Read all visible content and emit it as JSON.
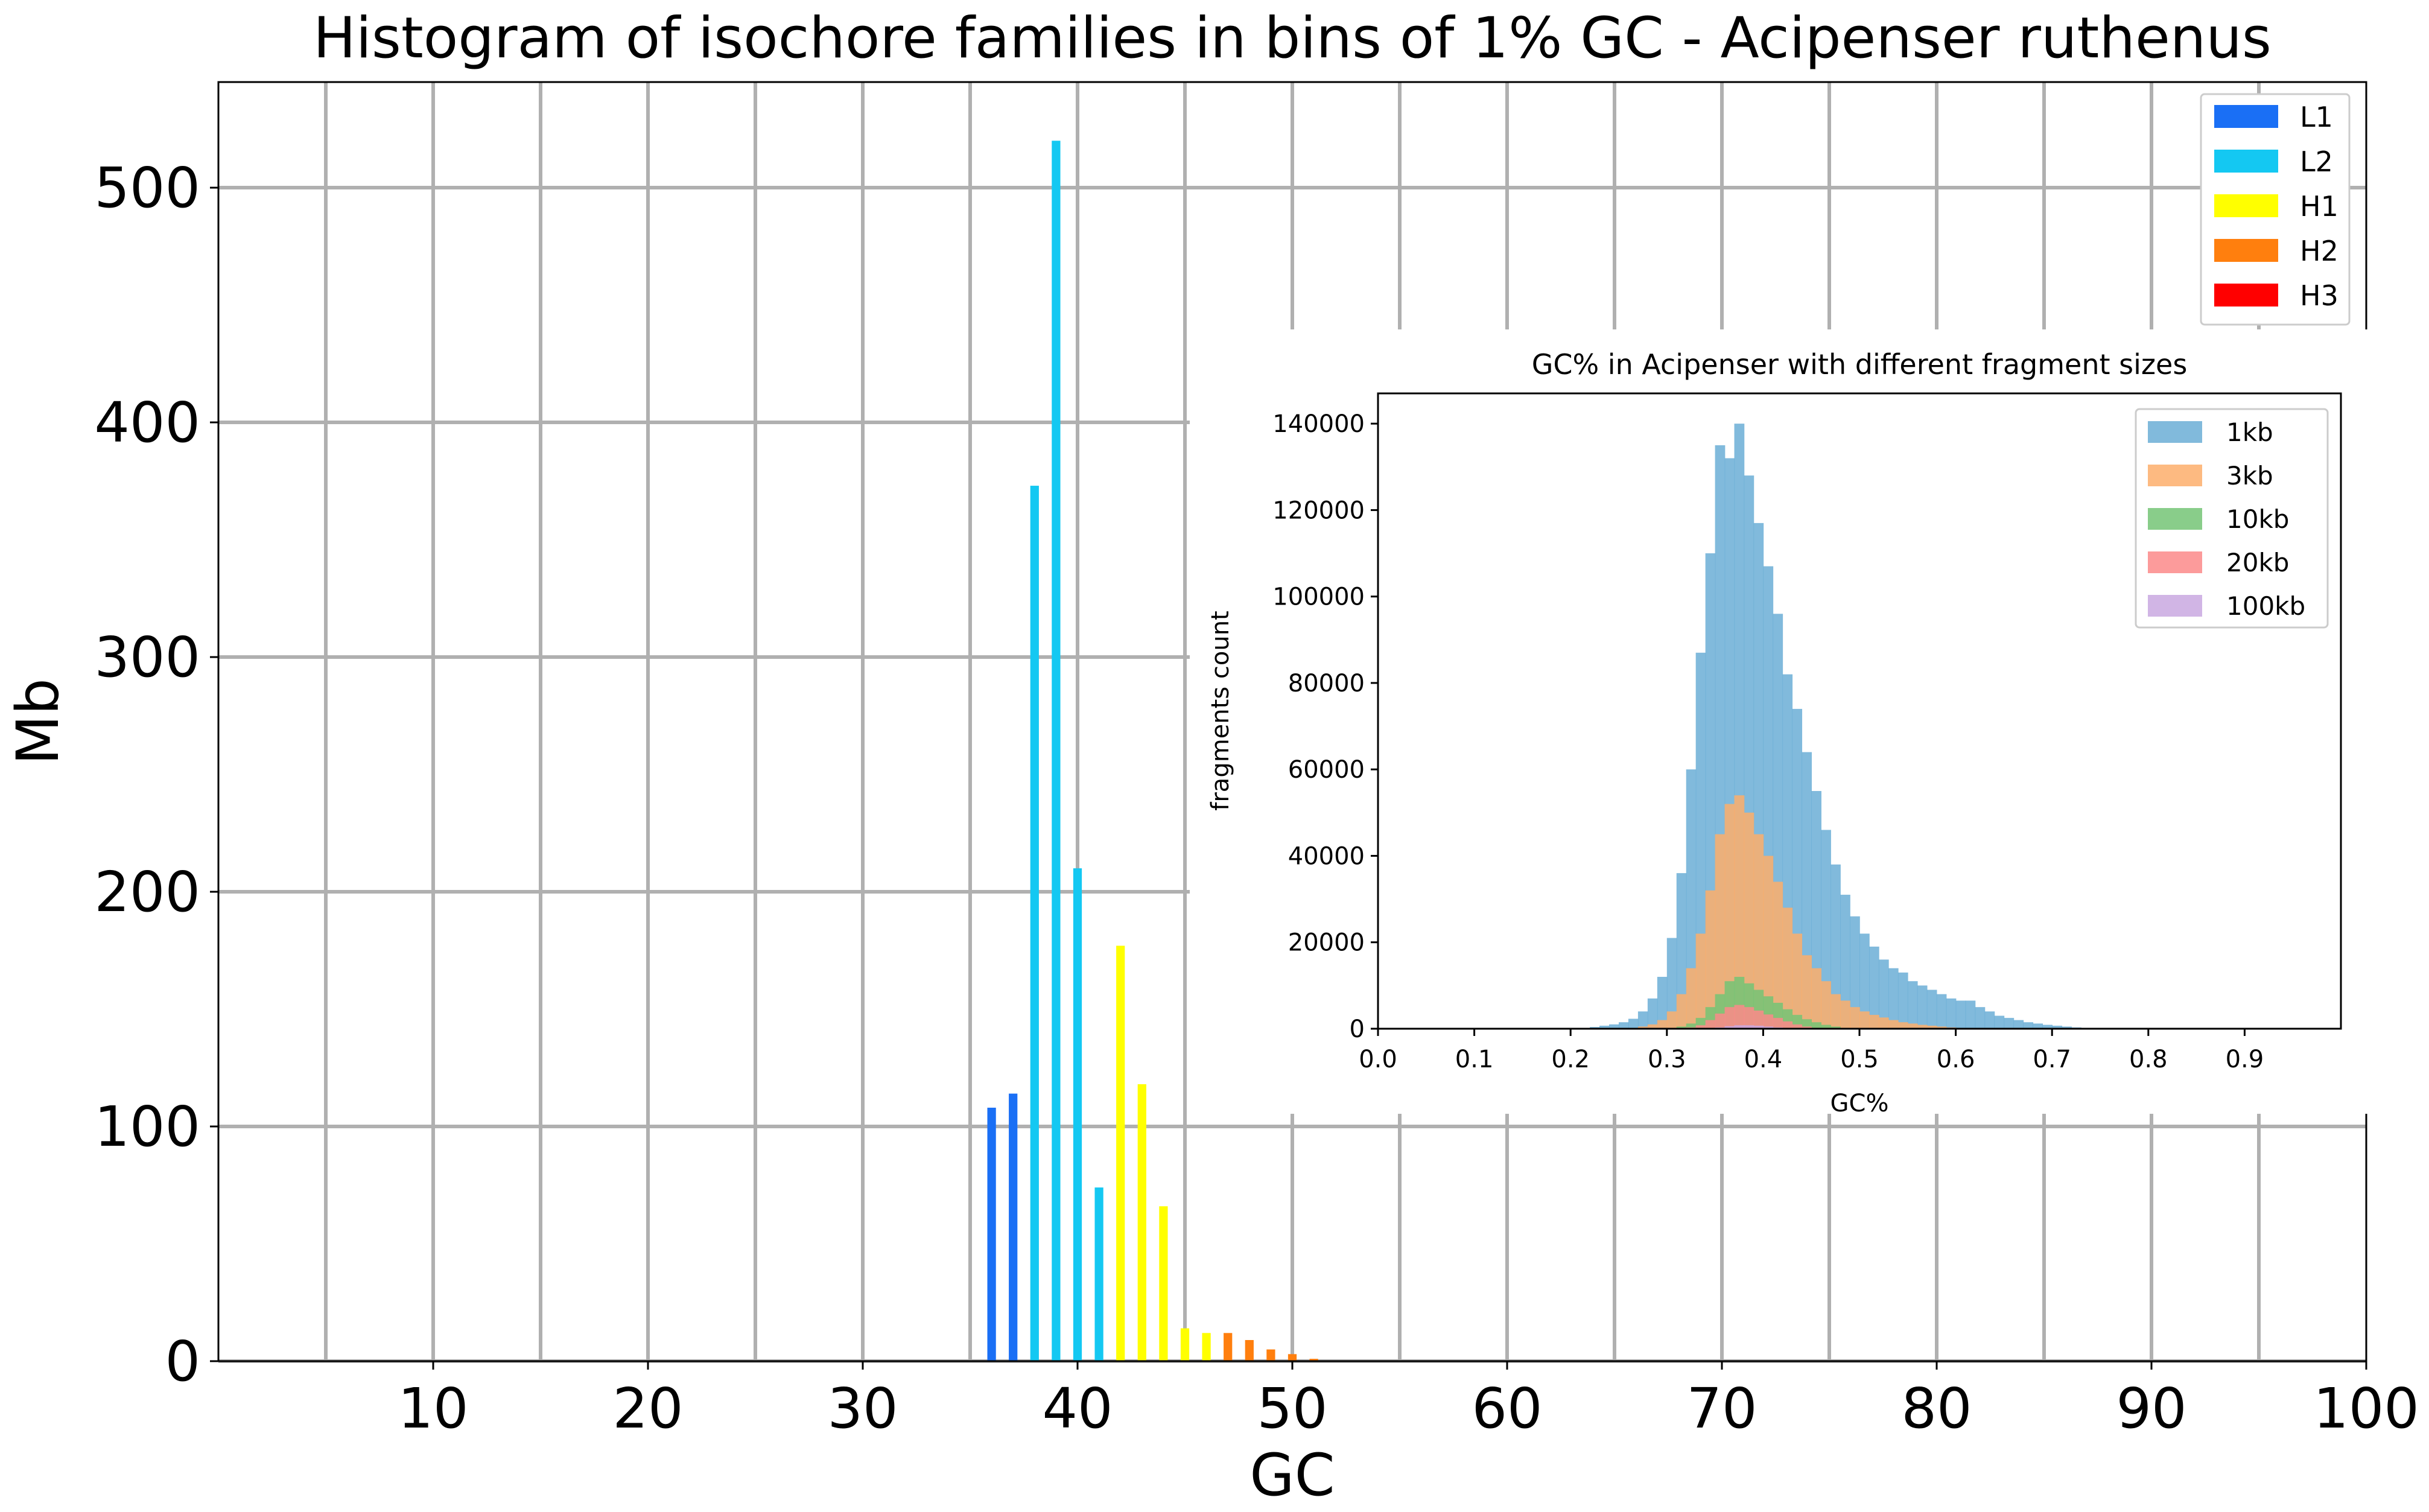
{
  "chart_data": [
    {
      "type": "bar",
      "title": "Histogram of isochore families in bins of 1% GC - Acipenser ruthenus",
      "xlabel": "GC",
      "ylabel": "Mb",
      "xlim": [
        0,
        100
      ],
      "ylim": [
        0,
        545
      ],
      "x_ticks": [
        10,
        20,
        30,
        40,
        50,
        60,
        70,
        80,
        90,
        100
      ],
      "y_ticks": [
        0,
        100,
        200,
        300,
        400,
        500
      ],
      "grid": true,
      "legend_position": "top-right",
      "series": [
        {
          "name": "L1",
          "color": "#1a6ff5",
          "x": [
            36,
            37
          ],
          "values": [
            108,
            114
          ]
        },
        {
          "name": "L2",
          "color": "#14c8f2",
          "x": [
            38,
            39,
            40,
            41
          ],
          "values": [
            373,
            520,
            210,
            74
          ]
        },
        {
          "name": "H1",
          "color": "#ffff00",
          "x": [
            42,
            43,
            44,
            45,
            46
          ],
          "values": [
            177,
            118,
            66,
            14,
            12
          ]
        },
        {
          "name": "H2",
          "color": "#ff7f0e",
          "x": [
            47,
            48,
            49,
            50,
            51
          ],
          "values": [
            12,
            9,
            5,
            3,
            1
          ]
        },
        {
          "name": "H3",
          "color": "#ff0000",
          "x": [],
          "values": []
        }
      ]
    },
    {
      "type": "histogram",
      "title": "GC% in Acipenser with different fragment sizes",
      "xlabel": "GC%",
      "ylabel": "fragments count",
      "xlim": [
        0,
        1
      ],
      "ylim": [
        0,
        147000
      ],
      "x_ticks": [
        "0.0",
        "0.1",
        "0.2",
        "0.3",
        "0.4",
        "0.5",
        "0.6",
        "0.7",
        "0.8",
        "0.9"
      ],
      "y_ticks": [
        0,
        20000,
        40000,
        60000,
        80000,
        100000,
        120000,
        140000
      ],
      "grid": false,
      "legend_position": "top-right",
      "series": [
        {
          "name": "1kb",
          "color": "#6baed6",
          "x": [
            0.2,
            0.21,
            0.22,
            0.23,
            0.24,
            0.25,
            0.26,
            0.27,
            0.28,
            0.29,
            0.3,
            0.31,
            0.32,
            0.33,
            0.34,
            0.35,
            0.36,
            0.37,
            0.38,
            0.39,
            0.4,
            0.41,
            0.42,
            0.43,
            0.44,
            0.45,
            0.46,
            0.47,
            0.48,
            0.49,
            0.5,
            0.51,
            0.52,
            0.53,
            0.54,
            0.55,
            0.56,
            0.57,
            0.58,
            0.59,
            0.6,
            0.61,
            0.62,
            0.63,
            0.64,
            0.65,
            0.66,
            0.67,
            0.68,
            0.69,
            0.7,
            0.71,
            0.72,
            0.73,
            0.74,
            0.75
          ],
          "values": [
            0,
            200,
            400,
            700,
            1000,
            1500,
            2300,
            4000,
            7000,
            12000,
            21000,
            36000,
            60000,
            87000,
            110000,
            135000,
            132000,
            140000,
            128000,
            117000,
            107000,
            96000,
            82000,
            74000,
            64000,
            55000,
            46000,
            38000,
            31000,
            26000,
            22000,
            19000,
            16000,
            14000,
            13000,
            11000,
            10000,
            9000,
            8000,
            7000,
            6500,
            6500,
            5000,
            4000,
            3000,
            2500,
            2000,
            1500,
            1200,
            900,
            700,
            500,
            300,
            200,
            100,
            0
          ]
        },
        {
          "name": "3kb",
          "color": "#fdae6b",
          "x": [
            0.26,
            0.27,
            0.28,
            0.29,
            0.3,
            0.31,
            0.32,
            0.33,
            0.34,
            0.35,
            0.36,
            0.37,
            0.38,
            0.39,
            0.4,
            0.41,
            0.42,
            0.43,
            0.44,
            0.45,
            0.46,
            0.47,
            0.48,
            0.49,
            0.5,
            0.51,
            0.52,
            0.53,
            0.54,
            0.55,
            0.56,
            0.57,
            0.58,
            0.59,
            0.6
          ],
          "values": [
            200,
            500,
            1000,
            2000,
            4000,
            8000,
            14000,
            22000,
            32000,
            45000,
            52000,
            54000,
            50000,
            45000,
            40000,
            34000,
            28000,
            22000,
            17000,
            14000,
            11000,
            8000,
            6500,
            5000,
            4000,
            3200,
            2600,
            2000,
            1500,
            1200,
            900,
            700,
            500,
            300,
            100
          ]
        },
        {
          "name": "10kb",
          "color": "#74c476",
          "x": [
            0.3,
            0.31,
            0.32,
            0.33,
            0.34,
            0.35,
            0.36,
            0.37,
            0.38,
            0.39,
            0.4,
            0.41,
            0.42,
            0.43,
            0.44,
            0.45,
            0.46,
            0.47,
            0.48
          ],
          "values": [
            200,
            500,
            1200,
            2500,
            5000,
            8000,
            11000,
            12000,
            10500,
            9000,
            7500,
            6000,
            4500,
            3200,
            2200,
            1500,
            900,
            500,
            200
          ]
        },
        {
          "name": "20kb",
          "color": "#fb8a8a",
          "x": [
            0.32,
            0.33,
            0.34,
            0.35,
            0.36,
            0.37,
            0.38,
            0.39,
            0.4,
            0.41,
            0.42,
            0.43,
            0.44,
            0.45
          ],
          "values": [
            300,
            800,
            2000,
            3500,
            5000,
            5500,
            5000,
            4200,
            3300,
            2500,
            1700,
            1000,
            500,
            200
          ]
        },
        {
          "name": "100kb",
          "color": "#c9a8e0",
          "x": [
            0.34,
            0.35,
            0.36,
            0.37,
            0.38,
            0.39,
            0.4,
            0.41,
            0.42
          ],
          "values": [
            100,
            300,
            600,
            800,
            800,
            700,
            500,
            300,
            100
          ]
        }
      ]
    }
  ]
}
